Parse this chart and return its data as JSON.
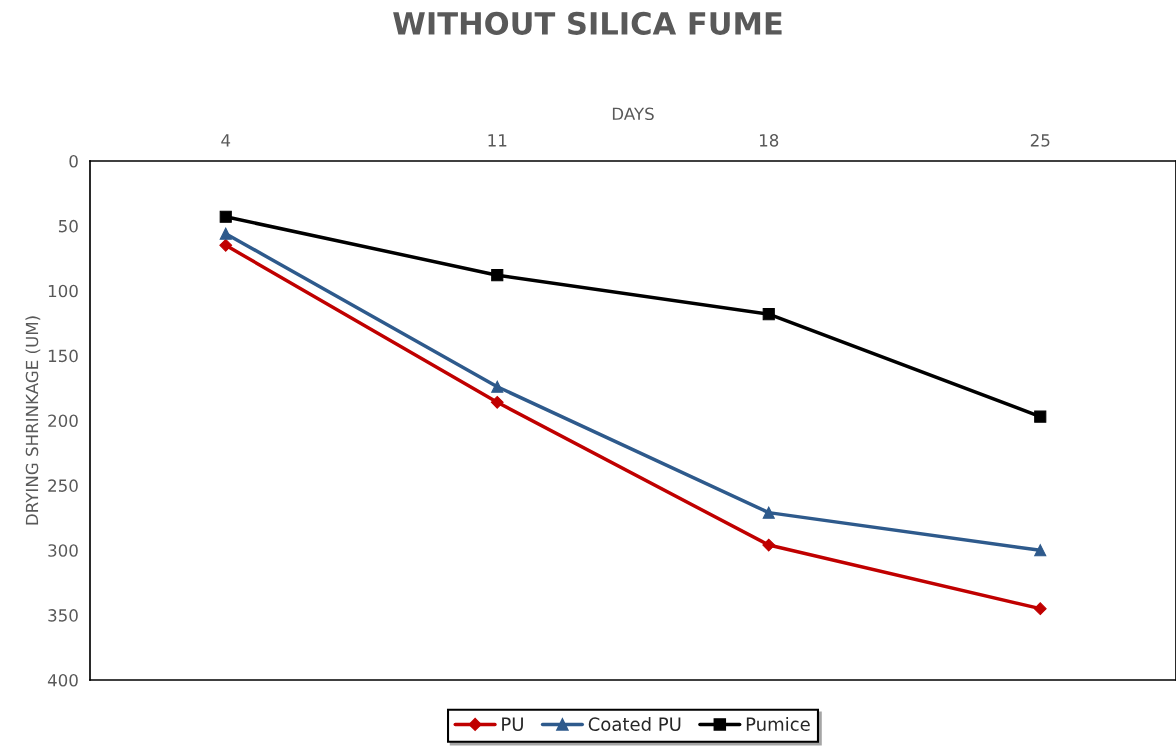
{
  "chart_data": {
    "type": "line",
    "title": "WITHOUT SILICA FUME",
    "xlabel": "DAYS",
    "ylabel": "DRYING SHRINKAGE (UM)",
    "categories": [
      "4",
      "11",
      "18",
      "25"
    ],
    "series": [
      {
        "name": "PU",
        "color": "#c00000",
        "marker": "diamond",
        "values": [
          65,
          186,
          296,
          345
        ]
      },
      {
        "name": "Coated PU",
        "color": "#2e5a8c",
        "marker": "triangle",
        "values": [
          56,
          174,
          271,
          300
        ]
      },
      {
        "name": "Pumice",
        "color": "#000000",
        "marker": "square",
        "values": [
          43,
          88,
          118,
          197
        ]
      }
    ],
    "ylim": [
      400,
      0
    ],
    "yticks": [
      0,
      50,
      100,
      150,
      200,
      250,
      300,
      350,
      400
    ],
    "grid": false,
    "legend": "bottom",
    "line_style": "solid"
  }
}
